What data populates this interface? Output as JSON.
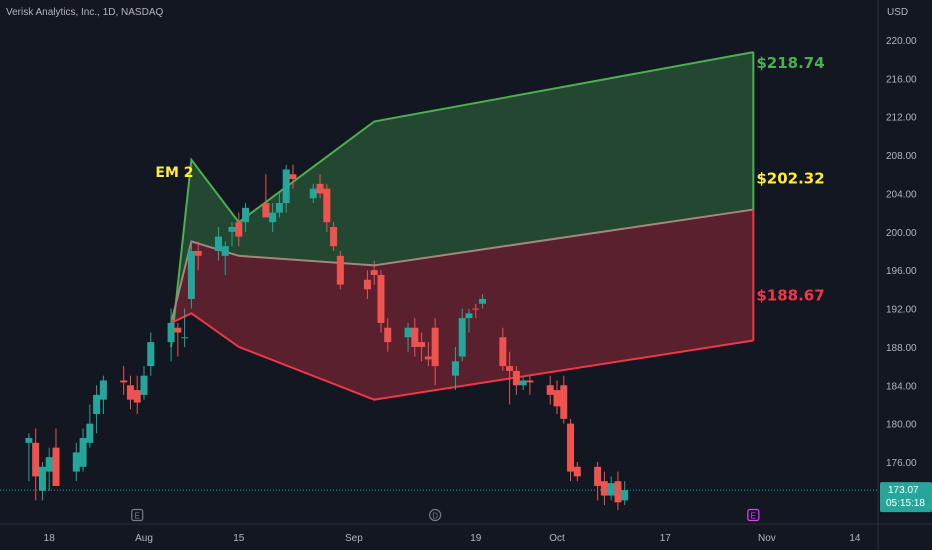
{
  "header": {
    "symbol_line": "Verisk Analytics, Inc., 1D, NASDAQ"
  },
  "price_axis": {
    "currency": "USD",
    "ticks": [
      "220.00",
      "216.00",
      "212.00",
      "208.00",
      "204.00",
      "200.00",
      "196.00",
      "192.00",
      "188.00",
      "184.00",
      "180.00",
      "176.00"
    ]
  },
  "time_axis": {
    "ticks": [
      "18",
      "Aug",
      "15",
      "Sep",
      "19",
      "Oct",
      "17",
      "Nov",
      "14"
    ]
  },
  "last_price": {
    "value": "173.07",
    "countdown": "05:15:18"
  },
  "annotations": {
    "em_label": "EM 2",
    "upper_label": "$218.74",
    "mid_label": "$202.32",
    "lower_label": "$188.67"
  },
  "event_markers": [
    {
      "symbol": "E",
      "date": "Jul 31",
      "color": "#787b86"
    },
    {
      "symbol": "D",
      "date": "Sep 13",
      "color": "#787b86"
    },
    {
      "symbol": "E",
      "date": "Oct 30",
      "color": "#e040fb"
    }
  ],
  "colors": {
    "background": "#131722",
    "up": "#26a69a",
    "down": "#ef5350",
    "upper_band": "#4caf50",
    "lower_band": "#f23645",
    "mid_label": "#ffeb3b"
  },
  "chart_data": {
    "type": "candlestick",
    "title": "Verisk Analytics, Inc., 1D, NASDAQ",
    "ylabel": "USD",
    "ylim": [
      171.0,
      222.0
    ],
    "xlim": [
      "Jul 14",
      "Nov 15"
    ],
    "grid": false,
    "candles": [
      {
        "date": "Jul 15",
        "open": 178,
        "high": 179,
        "low": 174,
        "close": 178.5
      },
      {
        "date": "Jul 16",
        "open": 178,
        "high": 179.5,
        "low": 172,
        "close": 174.5
      },
      {
        "date": "Jul 17",
        "open": 173,
        "high": 176,
        "low": 172,
        "close": 175.5
      },
      {
        "date": "Jul 18",
        "open": 175,
        "high": 177.5,
        "low": 173,
        "close": 176.5
      },
      {
        "date": "Jul 19",
        "open": 177.5,
        "high": 179.5,
        "low": 174,
        "close": 173.5
      },
      {
        "date": "Jul 22",
        "open": 175,
        "high": 178,
        "low": 174,
        "close": 177
      },
      {
        "date": "Jul 23",
        "open": 175.5,
        "high": 179.5,
        "low": 175,
        "close": 178.5
      },
      {
        "date": "Jul 24",
        "open": 178,
        "high": 182,
        "low": 177.5,
        "close": 180
      },
      {
        "date": "Jul 25",
        "open": 181,
        "high": 184,
        "low": 179,
        "close": 183
      },
      {
        "date": "Jul 26",
        "open": 182.5,
        "high": 185,
        "low": 181,
        "close": 184.5
      },
      {
        "date": "Jul 29",
        "open": 184.5,
        "high": 186,
        "low": 183,
        "close": 184.3
      },
      {
        "date": "Jul 30",
        "open": 184,
        "high": 185,
        "low": 181.5,
        "close": 182.5
      },
      {
        "date": "Jul 31",
        "open": 183.5,
        "high": 185,
        "low": 181,
        "close": 182.2
      },
      {
        "date": "Aug 01",
        "open": 183,
        "high": 186,
        "low": 182.5,
        "close": 185
      },
      {
        "date": "Aug 02",
        "open": 186,
        "high": 189.5,
        "low": 185,
        "close": 188.5
      },
      {
        "date": "Aug 05",
        "open": 188.5,
        "high": 192,
        "low": 186.5,
        "close": 190.5
      },
      {
        "date": "Aug 06",
        "open": 190,
        "high": 190.5,
        "low": 187,
        "close": 189.5
      },
      {
        "date": "Aug 07",
        "open": 189,
        "high": 192,
        "low": 188,
        "close": 189
      },
      {
        "date": "Aug 08",
        "open": 193,
        "high": 199,
        "low": 192,
        "close": 198
      },
      {
        "date": "Aug 09",
        "open": 198,
        "high": 199,
        "low": 196,
        "close": 197.5
      },
      {
        "date": "Aug 12",
        "open": 198,
        "high": 200.5,
        "low": 197,
        "close": 199.5
      },
      {
        "date": "Aug 13",
        "open": 197.5,
        "high": 199,
        "low": 195.5,
        "close": 198.5
      },
      {
        "date": "Aug 14",
        "open": 200,
        "high": 201,
        "low": 198.5,
        "close": 200.5
      },
      {
        "date": "Aug 15",
        "open": 201,
        "high": 202,
        "low": 198.5,
        "close": 199.5
      },
      {
        "date": "Aug 16",
        "open": 201,
        "high": 203,
        "low": 200,
        "close": 202.5
      },
      {
        "date": "Aug 19",
        "open": 203,
        "high": 206,
        "low": 201.5,
        "close": 201.5
      },
      {
        "date": "Aug 20",
        "open": 201,
        "high": 203,
        "low": 200,
        "close": 202
      },
      {
        "date": "Aug 21",
        "open": 202,
        "high": 204,
        "low": 201.5,
        "close": 203
      },
      {
        "date": "Aug 22",
        "open": 203,
        "high": 207,
        "low": 202,
        "close": 206.5
      },
      {
        "date": "Aug 23",
        "open": 206,
        "high": 207,
        "low": 204.5,
        "close": 205.5
      },
      {
        "date": "Aug 26",
        "open": 203.5,
        "high": 205,
        "low": 203,
        "close": 204.5
      },
      {
        "date": "Aug 27",
        "open": 205,
        "high": 206,
        "low": 203.5,
        "close": 204
      },
      {
        "date": "Aug 28",
        "open": 204.5,
        "high": 205,
        "low": 200,
        "close": 201
      },
      {
        "date": "Aug 29",
        "open": 200.5,
        "high": 201,
        "low": 198,
        "close": 198.5
      },
      {
        "date": "Aug 30",
        "open": 197.5,
        "high": 198,
        "low": 194,
        "close": 194.5
      },
      {
        "date": "Sep 03",
        "open": 195,
        "high": 196,
        "low": 193,
        "close": 194
      },
      {
        "date": "Sep 04",
        "open": 196,
        "high": 197,
        "low": 194.5,
        "close": 195.5
      },
      {
        "date": "Sep 05",
        "open": 195.5,
        "high": 196,
        "low": 189.5,
        "close": 190.5
      },
      {
        "date": "Sep 06",
        "open": 190,
        "high": 191,
        "low": 187.5,
        "close": 188.5
      },
      {
        "date": "Sep 09",
        "open": 189,
        "high": 190.5,
        "low": 187.5,
        "close": 190
      },
      {
        "date": "Sep 10",
        "open": 190,
        "high": 191,
        "low": 187,
        "close": 188
      },
      {
        "date": "Sep 11",
        "open": 188.5,
        "high": 189.5,
        "low": 186.5,
        "close": 188
      },
      {
        "date": "Sep 12",
        "open": 187,
        "high": 188.5,
        "low": 186,
        "close": 186.7
      },
      {
        "date": "Sep 13",
        "open": 190,
        "high": 191,
        "low": 184,
        "close": 186
      },
      {
        "date": "Sep 16",
        "open": 185,
        "high": 188,
        "low": 183.5,
        "close": 186.5
      },
      {
        "date": "Sep 17",
        "open": 187,
        "high": 192,
        "low": 186.5,
        "close": 191
      },
      {
        "date": "Sep 18",
        "open": 191,
        "high": 192,
        "low": 189.5,
        "close": 191.5
      },
      {
        "date": "Sep 19",
        "open": 192,
        "high": 192.5,
        "low": 191,
        "close": 191.9
      },
      {
        "date": "Sep 20",
        "open": 192.5,
        "high": 193.5,
        "low": 192,
        "close": 193
      },
      {
        "date": "Sep 23",
        "open": 189,
        "high": 190,
        "low": 185.5,
        "close": 186
      },
      {
        "date": "Sep 24",
        "open": 186,
        "high": 187.5,
        "low": 182,
        "close": 185.5
      },
      {
        "date": "Sep 25",
        "open": 185.5,
        "high": 186,
        "low": 183,
        "close": 184
      },
      {
        "date": "Sep 26",
        "open": 184,
        "high": 185,
        "low": 183.5,
        "close": 184.5
      },
      {
        "date": "Sep 27",
        "open": 184.5,
        "high": 185,
        "low": 183,
        "close": 184.3
      },
      {
        "date": "Sep 30",
        "open": 184,
        "high": 185,
        "low": 182,
        "close": 183
      },
      {
        "date": "Oct 01",
        "open": 183.5,
        "high": 184.5,
        "low": 181,
        "close": 181.8
      },
      {
        "date": "Oct 02",
        "open": 184,
        "high": 185,
        "low": 180,
        "close": 180.5
      },
      {
        "date": "Oct 03",
        "open": 180,
        "high": 180.5,
        "low": 174,
        "close": 175
      },
      {
        "date": "Oct 04",
        "open": 175.5,
        "high": 176,
        "low": 174,
        "close": 174.5
      },
      {
        "date": "Oct 07",
        "open": 175.5,
        "high": 176,
        "low": 172,
        "close": 173.5
      },
      {
        "date": "Oct 08",
        "open": 174,
        "high": 175,
        "low": 171.5,
        "close": 172.5
      },
      {
        "date": "Oct 09",
        "open": 172.5,
        "high": 174.5,
        "low": 172,
        "close": 173.8
      },
      {
        "date": "Oct 10",
        "open": 174,
        "high": 175,
        "low": 171,
        "close": 171.8
      },
      {
        "date": "Oct 11",
        "open": 172,
        "high": 174,
        "low": 171.5,
        "close": 173.07
      }
    ],
    "expected_move": {
      "upper": [
        {
          "date": "Aug 05",
          "value": 188
        },
        {
          "date": "Aug 08",
          "value": 207.5
        },
        {
          "date": "Aug 15",
          "value": 201
        },
        {
          "date": "Sep 04",
          "value": 211.5
        },
        {
          "date": "Oct 30",
          "value": 218.74
        }
      ],
      "mid": [
        {
          "date": "Aug 05",
          "value": 190.5
        },
        {
          "date": "Aug 08",
          "value": 199
        },
        {
          "date": "Aug 15",
          "value": 197.5
        },
        {
          "date": "Sep 04",
          "value": 196.5
        },
        {
          "date": "Oct 30",
          "value": 202.32
        }
      ],
      "lower": [
        {
          "date": "Aug 05",
          "value": 190.5
        },
        {
          "date": "Aug 08",
          "value": 191.5
        },
        {
          "date": "Aug 15",
          "value": 188
        },
        {
          "date": "Sep 04",
          "value": 182.5
        },
        {
          "date": "Oct 30",
          "value": 188.67
        }
      ]
    },
    "last_price_line": 173.07
  }
}
